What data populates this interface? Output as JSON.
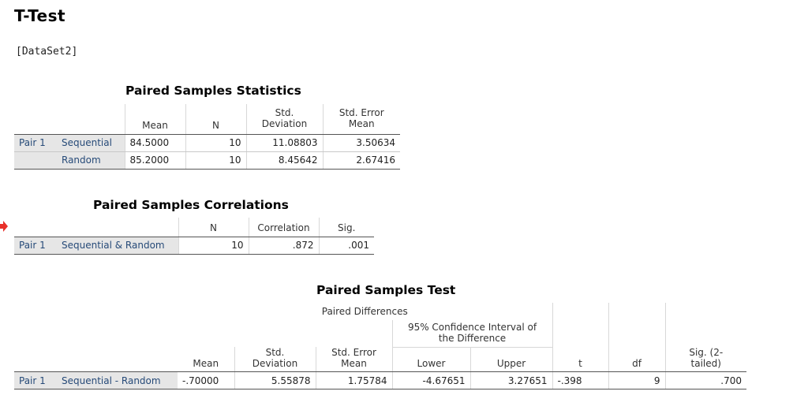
{
  "page": {
    "title": "T-Test",
    "dataset": "[DataSet2]"
  },
  "colors": {
    "row_label_text": "#264a78",
    "row_label_bg": "#e6e6e6",
    "arrow": "#e8302a"
  },
  "icons": {
    "marker": "red-arrow-icon"
  },
  "stats": {
    "title": "Paired Samples Statistics",
    "headers": {
      "mean": "Mean",
      "n": "N",
      "std_dev_1": "Std.",
      "std_dev_2": "Deviation",
      "std_err_1": "Std. Error",
      "std_err_2": "Mean"
    },
    "pair_label": "Pair 1",
    "rows": [
      {
        "name": "Sequential",
        "mean": "84.5000",
        "n": "10",
        "sd": "11.08803",
        "se": "3.50634"
      },
      {
        "name": "Random",
        "mean": "85.2000",
        "n": "10",
        "sd": "8.45642",
        "se": "2.67416"
      }
    ]
  },
  "corr": {
    "title": "Paired Samples Correlations",
    "headers": {
      "n": "N",
      "correlation": "Correlation",
      "sig": "Sig."
    },
    "pair_label": "Pair 1",
    "row": {
      "name": "Sequential & Random",
      "n": "10",
      "correlation": ".872",
      "sig": ".001"
    }
  },
  "test": {
    "title": "Paired Samples Test",
    "headers": {
      "paired_differences": "Paired Differences",
      "ci_1": "95% Confidence Interval of",
      "ci_2": "the Difference",
      "mean": "Mean",
      "sd_1": "Std.",
      "sd_2": "Deviation",
      "se_1": "Std. Error",
      "se_2": "Mean",
      "lower": "Lower",
      "upper": "Upper",
      "t": "t",
      "df": "df",
      "sig_1": "Sig. (2-",
      "sig_2": "tailed)"
    },
    "pair_label": "Pair 1",
    "row": {
      "name": "Sequential - Random",
      "mean": "-.70000",
      "sd": "5.55878",
      "se": "1.75784",
      "lower": "-4.67651",
      "upper": "3.27651",
      "t": "-.398",
      "df": "9",
      "sig": ".700"
    }
  }
}
